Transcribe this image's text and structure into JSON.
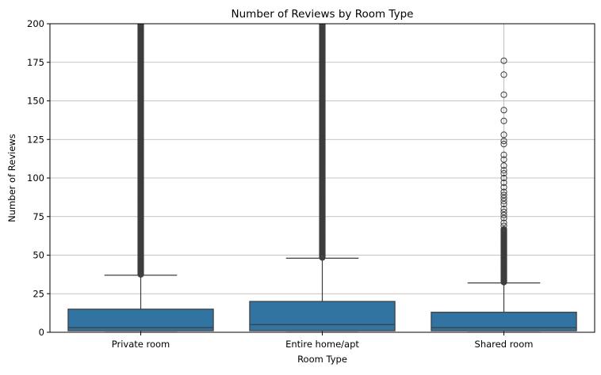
{
  "chart_data": {
    "type": "box",
    "title": "Number of Reviews by Room Type",
    "xlabel": "Room Type",
    "ylabel": "Number of Reviews",
    "ylim": [
      0,
      200
    ],
    "yticks": [
      0,
      25,
      50,
      75,
      100,
      125,
      150,
      175,
      200
    ],
    "grid": true,
    "categories": [
      "Private room",
      "Entire home/apt",
      "Shared room"
    ],
    "box_color": "#3274a1",
    "line_color": "#3d3d3d",
    "grid_color": "#b0b0b0",
    "boxes": [
      {
        "category": "Private room",
        "whisker_low": 0,
        "q1": 1,
        "median": 3,
        "q3": 15,
        "whisker_high": 37,
        "outlier_range": [
          37.5,
          200
        ],
        "outliers": []
      },
      {
        "category": "Entire home/apt",
        "whisker_low": 0,
        "q1": 1,
        "median": 5,
        "q3": 20,
        "whisker_high": 48,
        "outlier_range": [
          48.5,
          200
        ],
        "outliers": []
      },
      {
        "category": "Shared room",
        "whisker_low": 0,
        "q1": 1,
        "median": 3,
        "q3": 13,
        "whisker_high": 32,
        "outlier_range": [
          32.5,
          67
        ],
        "outliers": [
          176,
          167,
          154,
          144,
          137,
          128,
          124,
          122,
          115,
          112,
          108,
          105,
          103,
          100,
          97,
          94,
          91,
          89,
          87,
          85,
          83,
          80,
          78,
          76,
          74,
          71,
          69
        ]
      }
    ]
  }
}
